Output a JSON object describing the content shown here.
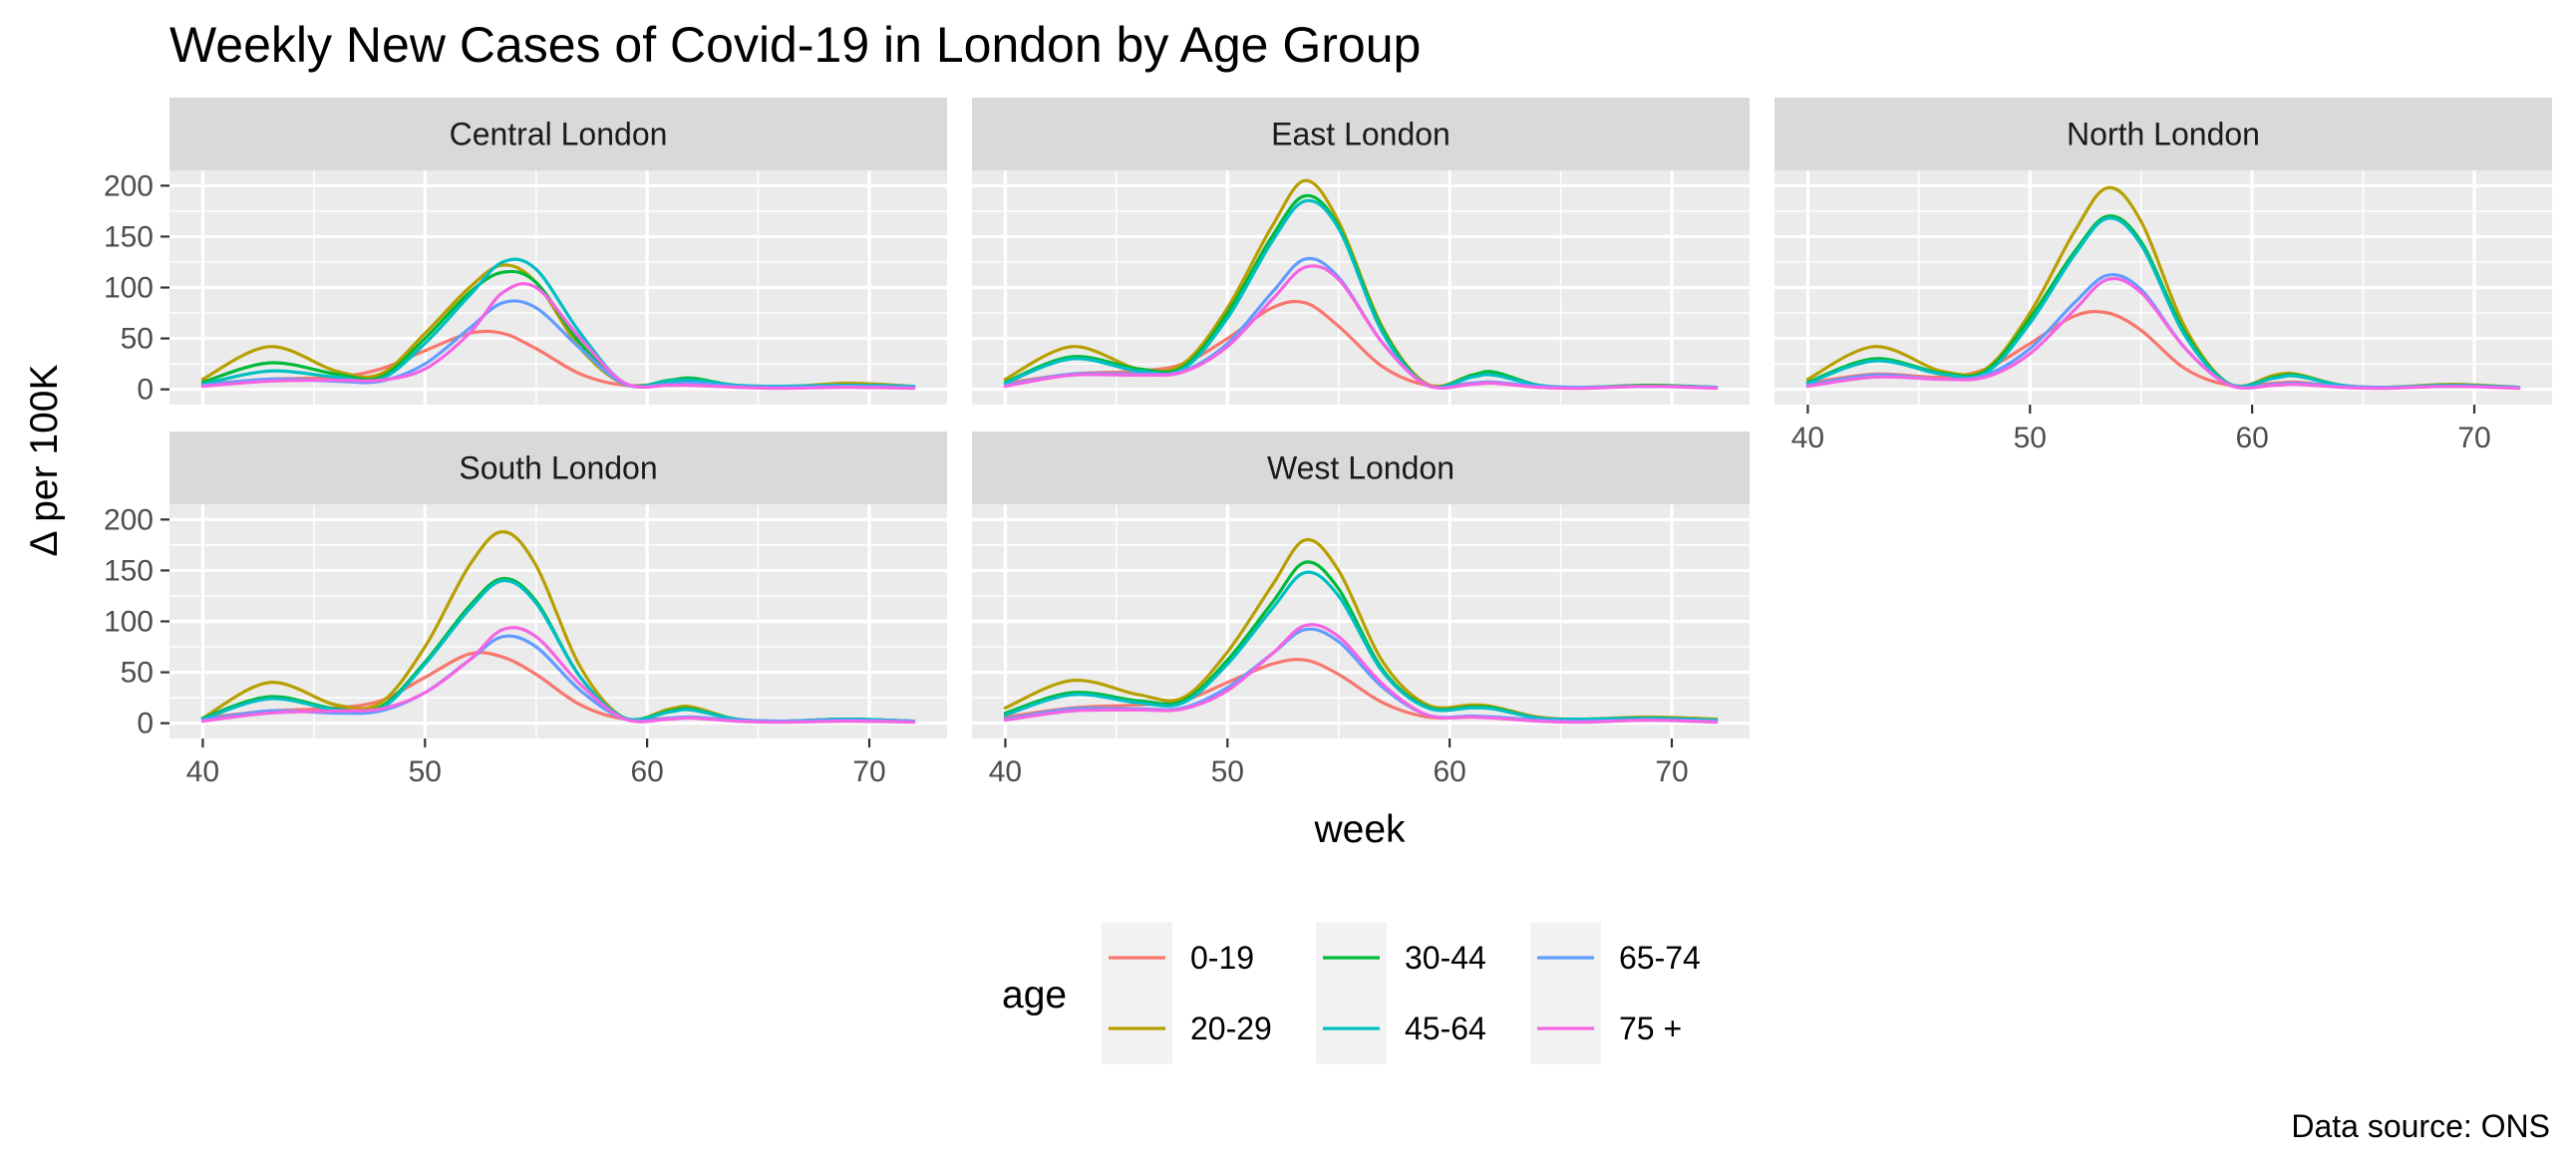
{
  "chart_data": {
    "type": "line",
    "title": "Weekly New Cases of Covid-19 in London by Age Group",
    "xlabel": "week",
    "ylabel": "Δ per 100K",
    "caption": "Data source: ONS",
    "xlim": [
      38.5,
      73.5
    ],
    "ylim": [
      -15,
      215
    ],
    "xticks": [
      40,
      50,
      60,
      70
    ],
    "yticks": [
      0,
      50,
      100,
      150,
      200
    ],
    "grid": true,
    "legend": {
      "title": "age",
      "position": "bottom",
      "entries": [
        {
          "name": "0-19",
          "color": "#F8766D"
        },
        {
          "name": "20-29",
          "color": "#B79F00"
        },
        {
          "name": "30-44",
          "color": "#00BA38"
        },
        {
          "name": "45-64",
          "color": "#00BFC4"
        },
        {
          "name": "65-74",
          "color": "#619CFF"
        },
        {
          "name": "75 +",
          "color": "#F564E3"
        }
      ]
    },
    "x": [
      40,
      43,
      46,
      48,
      50,
      52,
      53.5,
      55,
      57,
      59,
      61,
      62,
      64,
      66,
      69,
      72
    ],
    "panels": [
      {
        "name": "Central London",
        "series": [
          {
            "name": "0-19",
            "values": [
              5,
              10,
              12,
              20,
              38,
              55,
              55,
              40,
              15,
              4,
              6,
              7,
              3,
              2,
              3,
              2
            ]
          },
          {
            "name": "20-29",
            "values": [
              10,
              42,
              18,
              15,
              55,
              100,
              122,
              105,
              40,
              5,
              8,
              10,
              3,
              2,
              6,
              3
            ]
          },
          {
            "name": "30-44",
            "values": [
              7,
              26,
              15,
              12,
              50,
              95,
              115,
              105,
              45,
              5,
              9,
              11,
              4,
              3,
              4,
              3
            ]
          },
          {
            "name": "45-64",
            "values": [
              5,
              18,
              12,
              10,
              45,
              92,
              125,
              118,
              55,
              6,
              8,
              9,
              4,
              3,
              4,
              3
            ]
          },
          {
            "name": "65-74",
            "values": [
              4,
              10,
              8,
              8,
              25,
              60,
              85,
              80,
              40,
              5,
              5,
              6,
              3,
              2,
              3,
              2
            ]
          },
          {
            "name": "75 +",
            "values": [
              3,
              8,
              9,
              9,
              20,
              55,
              95,
              100,
              50,
              6,
              4,
              4,
              2,
              1,
              2,
              1
            ]
          }
        ]
      },
      {
        "name": "East London",
        "series": [
          {
            "name": "0-19",
            "values": [
              6,
              15,
              18,
              25,
              50,
              80,
              85,
              62,
              22,
              4,
              6,
              7,
              2,
              2,
              3,
              2
            ]
          },
          {
            "name": "20-29",
            "values": [
              10,
              42,
              20,
              25,
              80,
              160,
              205,
              165,
              60,
              5,
              14,
              16,
              4,
              2,
              4,
              2
            ]
          },
          {
            "name": "30-44",
            "values": [
              7,
              32,
              20,
              22,
              75,
              150,
              190,
              160,
              58,
              4,
              14,
              17,
              4,
              2,
              4,
              2
            ]
          },
          {
            "name": "45-64",
            "values": [
              6,
              30,
              18,
              20,
              70,
              145,
              185,
              158,
              55,
              4,
              12,
              14,
              4,
              2,
              3,
              2
            ]
          },
          {
            "name": "65-74",
            "values": [
              4,
              15,
              15,
              18,
              45,
              95,
              128,
              110,
              45,
              4,
              6,
              7,
              3,
              2,
              3,
              2
            ]
          },
          {
            "name": "75 +",
            "values": [
              3,
              14,
              14,
              17,
              42,
              88,
              120,
              108,
              45,
              4,
              5,
              6,
              2,
              1,
              3,
              1
            ]
          }
        ]
      },
      {
        "name": "North London",
        "series": [
          {
            "name": "0-19",
            "values": [
              6,
              15,
              12,
              20,
              45,
              72,
              75,
              58,
              20,
              4,
              6,
              7,
              3,
              2,
              3,
              2
            ]
          },
          {
            "name": "20-29",
            "values": [
              10,
              42,
              18,
              20,
              75,
              155,
              198,
              165,
              60,
              5,
              14,
              15,
              4,
              2,
              5,
              2
            ]
          },
          {
            "name": "30-44",
            "values": [
              7,
              30,
              16,
              18,
              70,
              135,
              170,
              145,
              55,
              5,
              12,
              14,
              4,
              2,
              4,
              2
            ]
          },
          {
            "name": "45-64",
            "values": [
              6,
              28,
              15,
              16,
              65,
              132,
              168,
              142,
              52,
              5,
              11,
              13,
              4,
              2,
              4,
              2
            ]
          },
          {
            "name": "65-74",
            "values": [
              4,
              14,
              10,
              14,
              40,
              85,
              112,
              98,
              40,
              4,
              5,
              6,
              3,
              2,
              3,
              2
            ]
          },
          {
            "name": "75 +",
            "values": [
              3,
              12,
              10,
              12,
              35,
              78,
              108,
              95,
              40,
              4,
              4,
              5,
              2,
              1,
              3,
              1
            ]
          }
        ]
      },
      {
        "name": "South London",
        "series": [
          {
            "name": "0-19",
            "values": [
              5,
              12,
              15,
              22,
              45,
              68,
              65,
              48,
              18,
              4,
              5,
              6,
              3,
              2,
              3,
              2
            ]
          },
          {
            "name": "20-29",
            "values": [
              5,
              40,
              18,
              20,
              75,
              155,
              188,
              155,
              55,
              5,
              14,
              16,
              4,
              2,
              4,
              2
            ]
          },
          {
            "name": "30-44",
            "values": [
              5,
              26,
              14,
              16,
              60,
              115,
              142,
              120,
              45,
              5,
              12,
              14,
              4,
              2,
              4,
              2
            ]
          },
          {
            "name": "45-64",
            "values": [
              4,
              24,
              13,
              14,
              58,
              112,
              140,
              118,
              45,
              5,
              11,
              13,
              4,
              2,
              4,
              2
            ]
          },
          {
            "name": "65-74",
            "values": [
              3,
              12,
              10,
              12,
              30,
              62,
              85,
              75,
              32,
              4,
              5,
              6,
              3,
              2,
              3,
              2
            ]
          },
          {
            "name": "75 +",
            "values": [
              2,
              10,
              12,
              14,
              30,
              62,
              92,
              85,
              38,
              4,
              4,
              5,
              2,
              1,
              2,
              1
            ]
          }
        ]
      },
      {
        "name": "West London",
        "series": [
          {
            "name": "0-19",
            "values": [
              6,
              15,
              18,
              22,
              40,
              58,
              62,
              48,
              20,
              6,
              6,
              6,
              3,
              2,
              3,
              2
            ]
          },
          {
            "name": "20-29",
            "values": [
              15,
              42,
              28,
              25,
              70,
              135,
              180,
              150,
              60,
              18,
              18,
              16,
              6,
              4,
              6,
              4
            ]
          },
          {
            "name": "30-44",
            "values": [
              10,
              30,
              22,
              22,
              62,
              118,
              158,
              132,
              52,
              16,
              16,
              15,
              5,
              4,
              5,
              3
            ]
          },
          {
            "name": "45-64",
            "values": [
              8,
              28,
              20,
              20,
              58,
              112,
              148,
              125,
              50,
              15,
              15,
              14,
              5,
              4,
              5,
              3
            ]
          },
          {
            "name": "65-74",
            "values": [
              4,
              14,
              14,
              15,
              35,
              68,
              92,
              80,
              35,
              8,
              7,
              6,
              3,
              2,
              3,
              2
            ]
          },
          {
            "name": "75 +",
            "values": [
              3,
              12,
              13,
              14,
              32,
              68,
              96,
              85,
              38,
              8,
              6,
              5,
              2,
              1,
              3,
              1
            ]
          }
        ]
      }
    ]
  }
}
